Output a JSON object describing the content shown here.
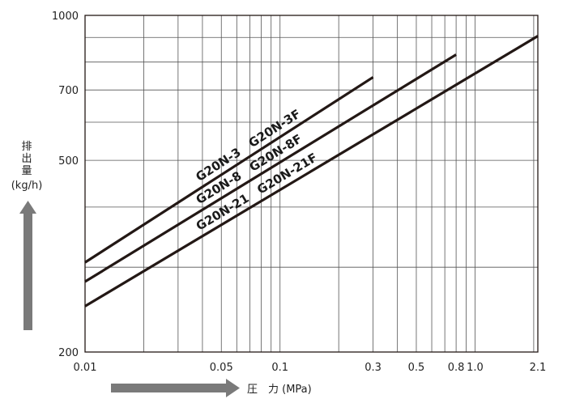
{
  "chart_data": {
    "type": "line",
    "xscale": "log",
    "yscale": "log",
    "xlim": [
      0.01,
      2.1
    ],
    "ylim": [
      200,
      1000
    ],
    "grid": true,
    "xticks": [
      {
        "value": 0.01,
        "label": "0.01"
      },
      {
        "value": 0.05,
        "label": "0.05"
      },
      {
        "value": 0.1,
        "label": "0.1"
      },
      {
        "value": 0.3,
        "label": "0.3"
      },
      {
        "value": 0.5,
        "label": "0.5"
      },
      {
        "value": 0.8,
        "label": "0.8"
      },
      {
        "value": 1.0,
        "label": "1.0"
      },
      {
        "value": 2.1,
        "label": "2.1"
      }
    ],
    "yticks": [
      {
        "value": 200,
        "label": "200"
      },
      {
        "value": 500,
        "label": "500"
      },
      {
        "value": 700,
        "label": "700"
      },
      {
        "value": 1000,
        "label": "1000"
      }
    ],
    "xgrid": [
      0.01,
      0.02,
      0.03,
      0.04,
      0.05,
      0.06,
      0.07,
      0.08,
      0.09,
      0.1,
      0.2,
      0.3,
      0.4,
      0.5,
      0.6,
      0.7,
      0.8,
      0.9,
      1.0,
      2.0
    ],
    "ygrid": [
      300,
      400,
      500,
      600,
      700,
      800,
      900
    ],
    "xlabel": "圧　力 (MPa)",
    "ylabel_lines": [
      "排",
      "出",
      "量",
      "(kg/h)"
    ],
    "line_color": "#231815",
    "arrow_color": "#7a7a7a",
    "series": [
      {
        "label": "G20N-3　G20N-3F",
        "x": [
          0.01,
          0.3
        ],
        "y": [
          307,
          744
        ]
      },
      {
        "label": "G20N-8　G20N-8F",
        "x": [
          0.01,
          0.8
        ],
        "y": [
          280,
          829
        ]
      },
      {
        "label": "G20N-21　G20N-21F",
        "x": [
          0.01,
          2.1
        ],
        "y": [
          249,
          906
        ]
      }
    ]
  }
}
